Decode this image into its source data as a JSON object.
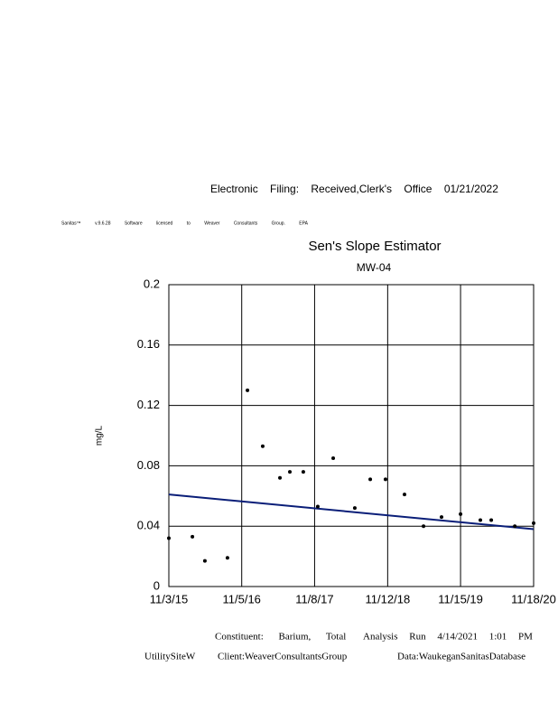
{
  "header": {
    "filing": "Electronic Filing: Received,Clerk's Office 01/21/2022",
    "software": "Sanitas™ v.9.6.28 Software licensed to Weaver Consultants Group. EPA"
  },
  "chart_data": {
    "type": "scatter",
    "title": "Sen's Slope Estimator",
    "subtitle": "MW-04",
    "y_label": "mg/L",
    "points": {
      "color": "#000000",
      "x": [
        "2015-11-03",
        "2016-03-01",
        "2016-05-03",
        "2016-08-25",
        "2016-12-04",
        "2017-02-19",
        "2017-05-17",
        "2017-07-06",
        "2017-09-12",
        "2017-11-24",
        "2018-02-10",
        "2018-05-30",
        "2018-08-16",
        "2018-11-01",
        "2019-02-05",
        "2019-05-12",
        "2019-08-11",
        "2019-11-15",
        "2020-02-23",
        "2020-04-18",
        "2020-08-15",
        "2020-11-18"
      ],
      "values": [
        0.032,
        0.033,
        0.017,
        0.019,
        0.13,
        0.093,
        0.072,
        0.076,
        0.076,
        0.053,
        0.085,
        0.052,
        0.071,
        0.071,
        0.061,
        0.04,
        0.046,
        0.048,
        0.044,
        0.044,
        0.04,
        0.042
      ]
    },
    "trend": {
      "color": "#0a1e78",
      "x": [
        "2015-11-03",
        "2020-11-18"
      ],
      "values": [
        0.061,
        0.038
      ]
    },
    "xlim": [
      "2015-11-03",
      "2020-11-18"
    ],
    "xticks": [
      {
        "value": "2015-11-03",
        "label": "11/3/15"
      },
      {
        "value": "2016-11-05",
        "label": "11/5/16"
      },
      {
        "value": "2017-11-08",
        "label": "11/8/17"
      },
      {
        "value": "2018-11-12",
        "label": "11/12/18"
      },
      {
        "value": "2019-11-15",
        "label": "11/15/19"
      },
      {
        "value": "2020-11-18",
        "label": "11/18/20"
      }
    ],
    "ylim": [
      0,
      0.2
    ],
    "yticks": [
      0,
      0.04,
      0.08,
      0.12,
      0.16,
      0.2
    ],
    "grid": true
  },
  "footer": {
    "constituent": "Constituent: Barium, Total",
    "analysis": "Analysis Run 4/14/2021 1:01 PM",
    "site": "UtilitySiteW",
    "client": "Client:WeaverConsultantsGroup",
    "data": "Data:WaukeganSanitasDatabase"
  }
}
